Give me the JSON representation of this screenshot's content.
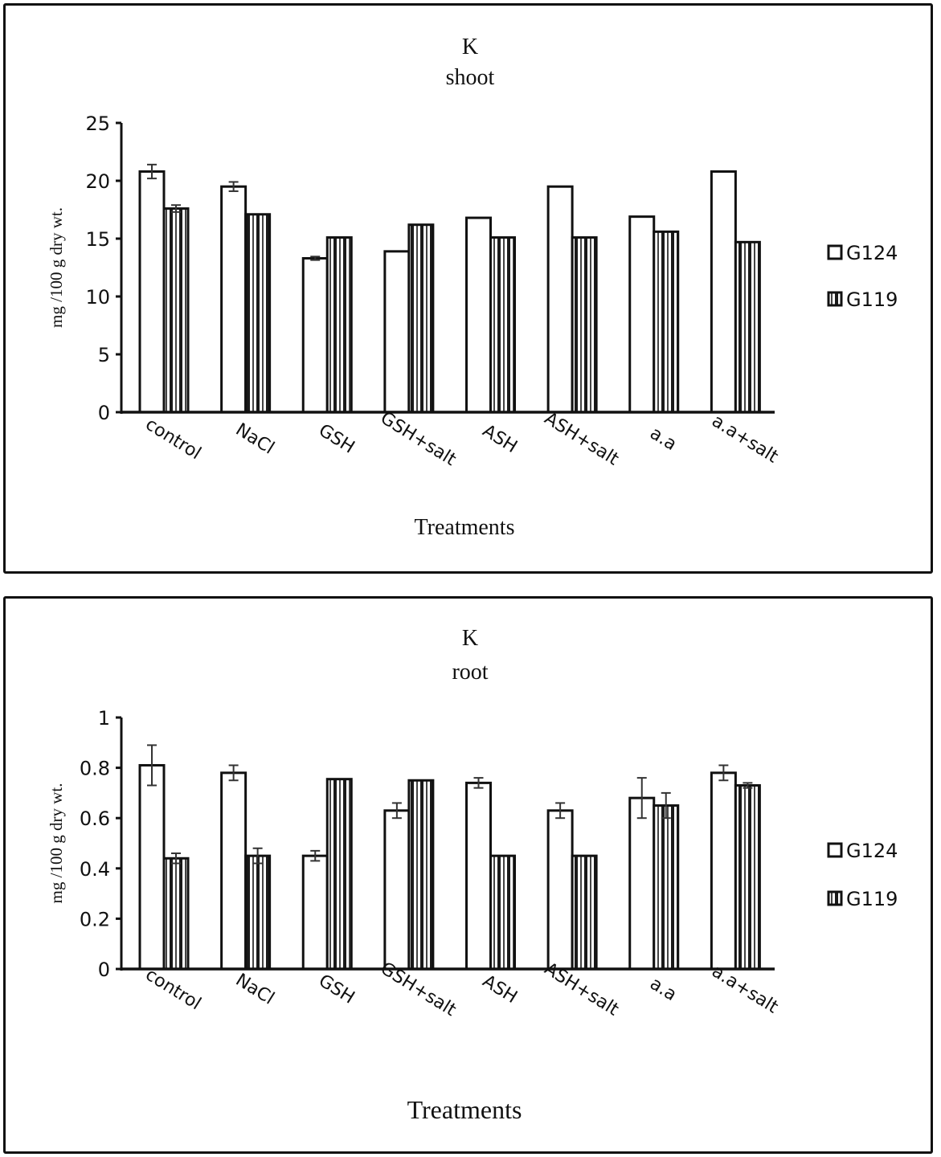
{
  "chart_data": [
    {
      "type": "bar",
      "title": "K",
      "subtitle": "shoot",
      "xlabel": "Treatments",
      "ylabel": "mg /100 g dry wt.",
      "ylim": [
        0,
        25
      ],
      "yticks": [
        0,
        5,
        10,
        15,
        20,
        25
      ],
      "ytick_labels": [
        "0",
        "5",
        "10",
        "15",
        "20",
        "25"
      ],
      "grid": false,
      "legend_position": "right",
      "categories": [
        "control",
        "NaCl",
        "GSH",
        "GSH+salt",
        "ASH",
        "ASH+salt",
        "a.a",
        "a.a+salt"
      ],
      "series": [
        {
          "name": "G124",
          "pattern": "white",
          "values": [
            20.8,
            19.5,
            13.3,
            13.9,
            16.8,
            19.5,
            16.9,
            20.8
          ],
          "errors": [
            0.6,
            0.4,
            0.15,
            0,
            0,
            0,
            0,
            0
          ]
        },
        {
          "name": "G119",
          "pattern": "vertical-stripes",
          "values": [
            17.6,
            17.1,
            15.1,
            16.2,
            15.1,
            15.1,
            15.6,
            14.7
          ],
          "errors": [
            0.3,
            0,
            0,
            0,
            0,
            0,
            0,
            0
          ]
        }
      ]
    },
    {
      "type": "bar",
      "title": "K",
      "subtitle": "root",
      "xlabel": "Treatments",
      "ylabel": "mg /100 g dry wt.",
      "ylim": [
        0,
        1
      ],
      "yticks": [
        0,
        0.2,
        0.4,
        0.6,
        0.8,
        1
      ],
      "ytick_labels": [
        "0",
        "0.2",
        "0.4",
        "0.6",
        "0.8",
        "1"
      ],
      "grid": false,
      "legend_position": "right",
      "categories": [
        "control",
        "NaCl",
        "GSH",
        "GSH+salt",
        "ASH",
        "ASH+salt",
        "a.a",
        "a.a+salt"
      ],
      "series": [
        {
          "name": "G124",
          "pattern": "white",
          "values": [
            0.81,
            0.78,
            0.45,
            0.63,
            0.74,
            0.63,
            0.68,
            0.78
          ],
          "errors": [
            0.08,
            0.03,
            0.02,
            0.03,
            0.02,
            0.03,
            0.08,
            0.03
          ]
        },
        {
          "name": "G119",
          "pattern": "vertical-stripes",
          "values": [
            0.44,
            0.45,
            0.755,
            0.75,
            0.45,
            0.45,
            0.65,
            0.73
          ],
          "errors": [
            0.02,
            0.03,
            0,
            0,
            0,
            0,
            0.05,
            0.01
          ]
        }
      ]
    }
  ],
  "colors": {
    "ink": "#111111",
    "fill_light": "#ffffff",
    "stripe_dark": "#1a1a1a",
    "stripe_mid": "#444444"
  }
}
